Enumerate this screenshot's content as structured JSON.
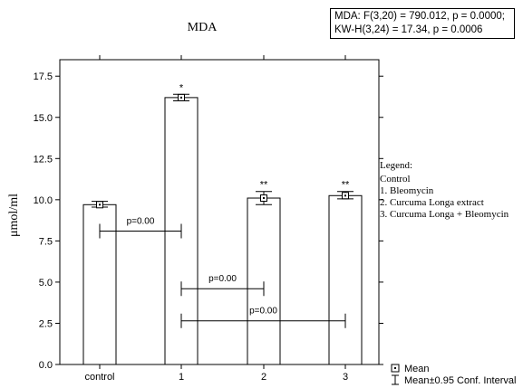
{
  "chart_data": {
    "type": "bar",
    "title": "MDA",
    "ylabel": "μmol/ml",
    "xlabel": "",
    "ylim": [
      0,
      18.5
    ],
    "yticks": [
      "0.0",
      "2.5",
      "5.0",
      "7.5",
      "10.0",
      "12.5",
      "15.0",
      "17.5"
    ],
    "categories": [
      "control",
      "1",
      "2",
      "3"
    ],
    "values": [
      9.7,
      16.2,
      10.1,
      10.25
    ],
    "ci_low": [
      9.55,
      16.0,
      9.7,
      10.05
    ],
    "ci_high": [
      9.9,
      16.4,
      10.5,
      10.5
    ],
    "significance": [
      "",
      "*",
      "**",
      "**"
    ],
    "comparisons": [
      {
        "label": "p=0.00",
        "from": "control",
        "to": "1",
        "y": 8.1
      },
      {
        "label": "p=0.00",
        "from": "1",
        "to": "2",
        "y": 4.6
      },
      {
        "label": "p=0.00",
        "from": "1",
        "to": "3",
        "y": 2.65
      }
    ],
    "stats": {
      "line1": "MDA:  F(3,20) = 790.012, p = 0.0000;",
      "line2": "KW-H(3,24) = 17.34, p = 0.0006"
    },
    "legend_groups": {
      "title": "Legend:",
      "items": [
        "Control",
        "1. Bleomycin",
        "2. Curcuma Longa extract",
        "3. Curcuma Longa + Bleomycin"
      ]
    },
    "legend_markers": {
      "mean": "Mean",
      "ci": "Mean±0.95 Conf. Interval"
    }
  }
}
